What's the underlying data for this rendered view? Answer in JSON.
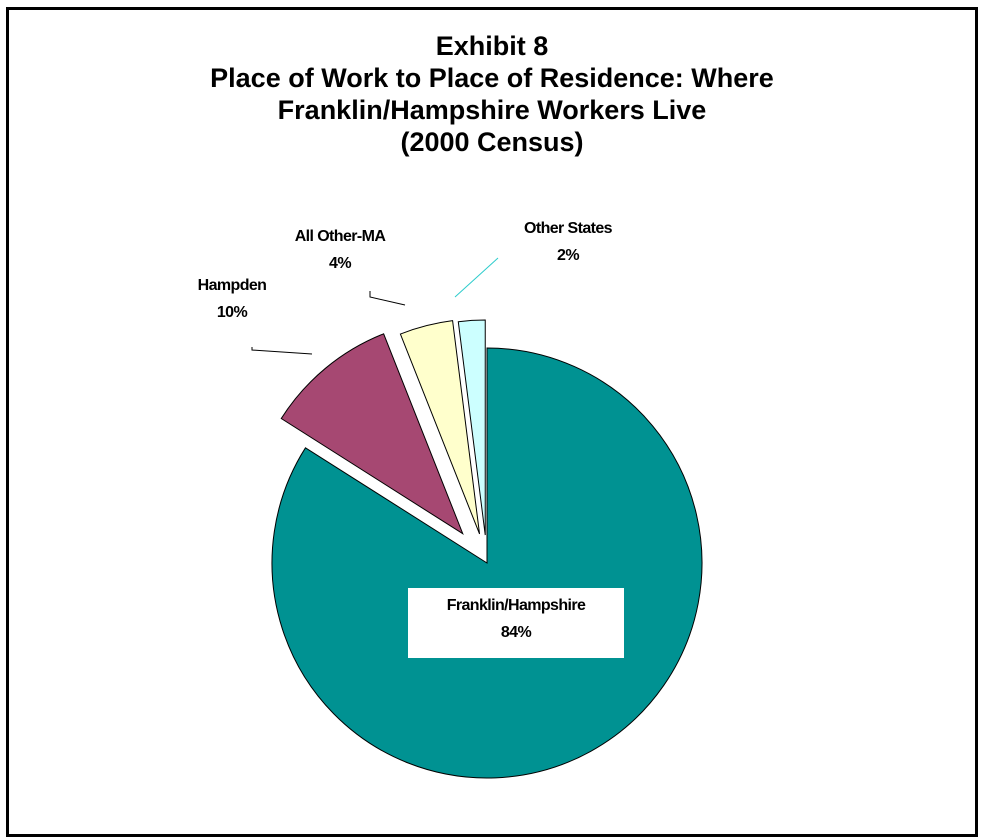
{
  "title": {
    "line1": "Exhibit 8",
    "line2": "Place of Work to Place of Residence: Where",
    "line3": "Franklin/Hampshire Workers Live",
    "line4": "(2000 Census)"
  },
  "chart_data": {
    "type": "pie",
    "title": "Exhibit 8 Place of Work to Place of Residence: Where Franklin/Hampshire Workers Live (2000 Census)",
    "slices": [
      {
        "label": "Franklin/Hampshire",
        "value": 84,
        "display": "84%",
        "color": "#009292",
        "exploded": false
      },
      {
        "label": "Hampden",
        "value": 10,
        "display": "10%",
        "color": "#A64872",
        "exploded": true
      },
      {
        "label": "All Other-MA",
        "value": 4,
        "display": "4%",
        "color": "#FFFFCC",
        "exploded": true
      },
      {
        "label": "Other States",
        "value": 2,
        "display": "2%",
        "color": "#CCFFFF",
        "exploded": true
      }
    ],
    "legend": "none",
    "data_labels": "category and percent"
  }
}
